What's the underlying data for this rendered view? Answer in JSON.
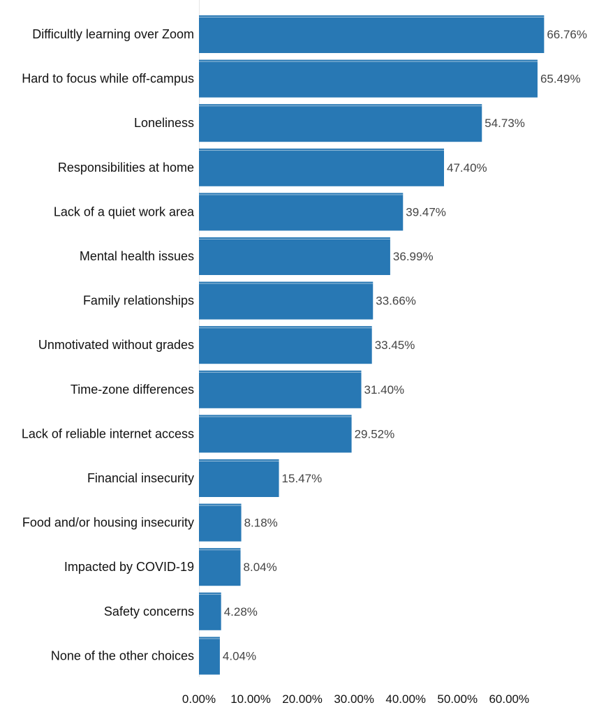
{
  "chart_data": {
    "type": "bar",
    "orientation": "horizontal",
    "title": "",
    "xlabel": "",
    "ylabel": "",
    "categories": [
      "Difficultly learning over Zoom",
      "Hard to focus while off-campus",
      "Loneliness",
      "Responsibilities at home",
      "Lack of a quiet work area",
      "Mental health issues",
      "Family relationships",
      "Unmotivated without grades",
      "Time-zone differences",
      "Lack of reliable internet access",
      "Financial insecurity",
      "Food and/or housing insecurity",
      "Impacted by COVID-19",
      "Safety concerns",
      "None of the other choices"
    ],
    "values": [
      66.76,
      65.49,
      54.73,
      47.4,
      39.47,
      36.99,
      33.66,
      33.45,
      31.4,
      29.52,
      15.47,
      8.18,
      8.04,
      4.28,
      4.04
    ],
    "value_labels": [
      "66.76%",
      "65.49%",
      "54.73%",
      "47.40%",
      "39.47%",
      "36.99%",
      "33.66%",
      "33.45%",
      "31.40%",
      "29.52%",
      "15.47%",
      "8.18%",
      "8.04%",
      "4.28%",
      "4.04%"
    ],
    "x_ticks": [
      0,
      10,
      20,
      30,
      40,
      50,
      60
    ],
    "x_tick_labels": [
      "0.00%",
      "10.00%",
      "20.00%",
      "30.00%",
      "40.00%",
      "50.00%",
      "60.00%"
    ],
    "xlim": [
      0,
      60
    ],
    "grid": false,
    "legend": "none",
    "bar_color": "#2878B4"
  }
}
